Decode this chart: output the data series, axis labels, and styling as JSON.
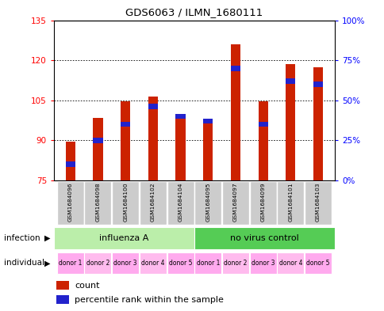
{
  "title": "GDS6063 / ILMN_1680111",
  "samples": [
    "GSM1684096",
    "GSM1684098",
    "GSM1684100",
    "GSM1684102",
    "GSM1684104",
    "GSM1684095",
    "GSM1684097",
    "GSM1684099",
    "GSM1684101",
    "GSM1684103"
  ],
  "count_values": [
    89.5,
    98.5,
    104.5,
    106.5,
    99.0,
    97.5,
    126.0,
    104.5,
    118.5,
    117.5
  ],
  "percentile_values": [
    10,
    25,
    35,
    46,
    40,
    37,
    70,
    35,
    62,
    60
  ],
  "ymin": 75,
  "ymax": 135,
  "yticks": [
    75,
    90,
    105,
    120,
    135
  ],
  "right_yticks": [
    0,
    25,
    50,
    75,
    100
  ],
  "right_yticklabels": [
    "0%",
    "25%",
    "50%",
    "75%",
    "100%"
  ],
  "individual_labels": [
    "donor 1",
    "donor 2",
    "donor 3",
    "donor 4",
    "donor 5",
    "donor 1",
    "donor 2",
    "donor 3",
    "donor 4",
    "donor 5"
  ],
  "bar_color": "#cc2200",
  "percentile_color": "#2222cc",
  "bar_width": 0.35,
  "label_bg_color": "#cccccc",
  "infection_color_1": "#bbeeaa",
  "infection_color_2": "#55cc55",
  "individual_colors": [
    "#ffaaee",
    "#ffbbee",
    "#ffaaee",
    "#ffbbee",
    "#ffaaee",
    "#ffaaee",
    "#ffbbee",
    "#ffaaee",
    "#ffbbee",
    "#ffaaee"
  ],
  "grid_dotted_color": "#000000",
  "plot_bg": "#ffffff"
}
